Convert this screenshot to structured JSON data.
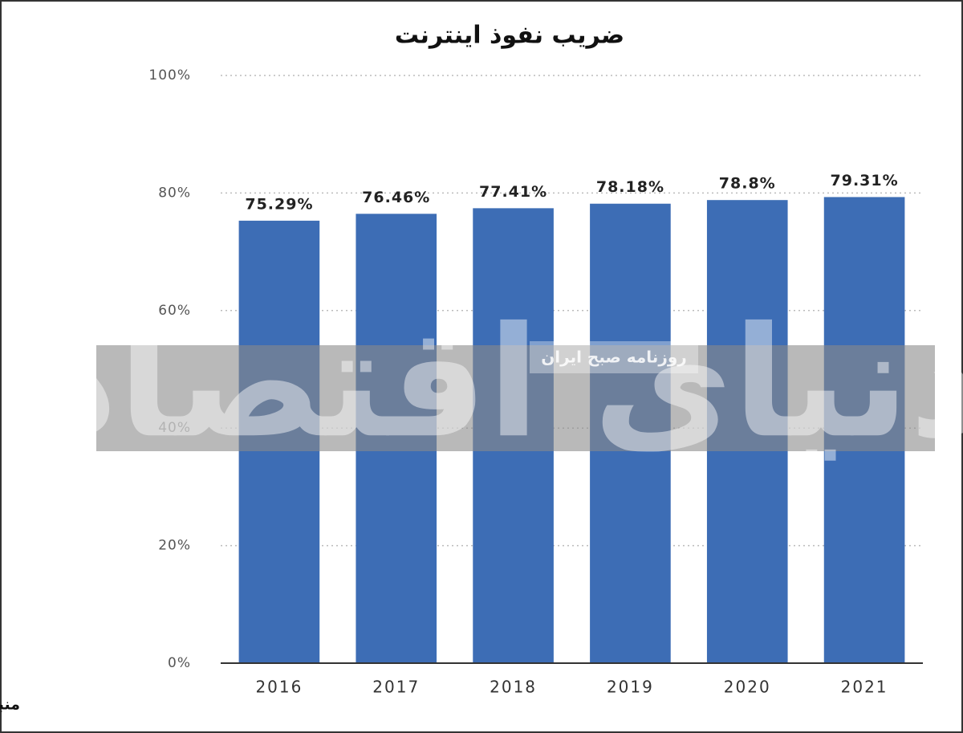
{
  "chart_data": {
    "type": "bar",
    "title": "ضریب نفوذ اینترنت",
    "categories": [
      "2016",
      "2017",
      "2018",
      "2019",
      "2020",
      "2021"
    ],
    "values": [
      75.29,
      76.46,
      77.41,
      78.18,
      78.8,
      79.31
    ],
    "value_labels": [
      "75.29%",
      "76.46%",
      "77.41%",
      "78.18%",
      "78.8%",
      "79.31%"
    ],
    "color": "#3d6db5",
    "ylim": [
      0,
      100
    ],
    "yticks": [
      {
        "value": 0,
        "label": "0%"
      },
      {
        "value": 20,
        "label": "20%"
      },
      {
        "value": 40,
        "label": "40%"
      },
      {
        "value": 60,
        "label": "60%"
      },
      {
        "value": 80,
        "label": "80%"
      },
      {
        "value": 100,
        "label": "100%"
      }
    ],
    "grid": true,
    "source": "منبع: Statista",
    "watermark": "دنیای اقتصاد",
    "watermark_tag": "روزنامه صبح ایران"
  }
}
